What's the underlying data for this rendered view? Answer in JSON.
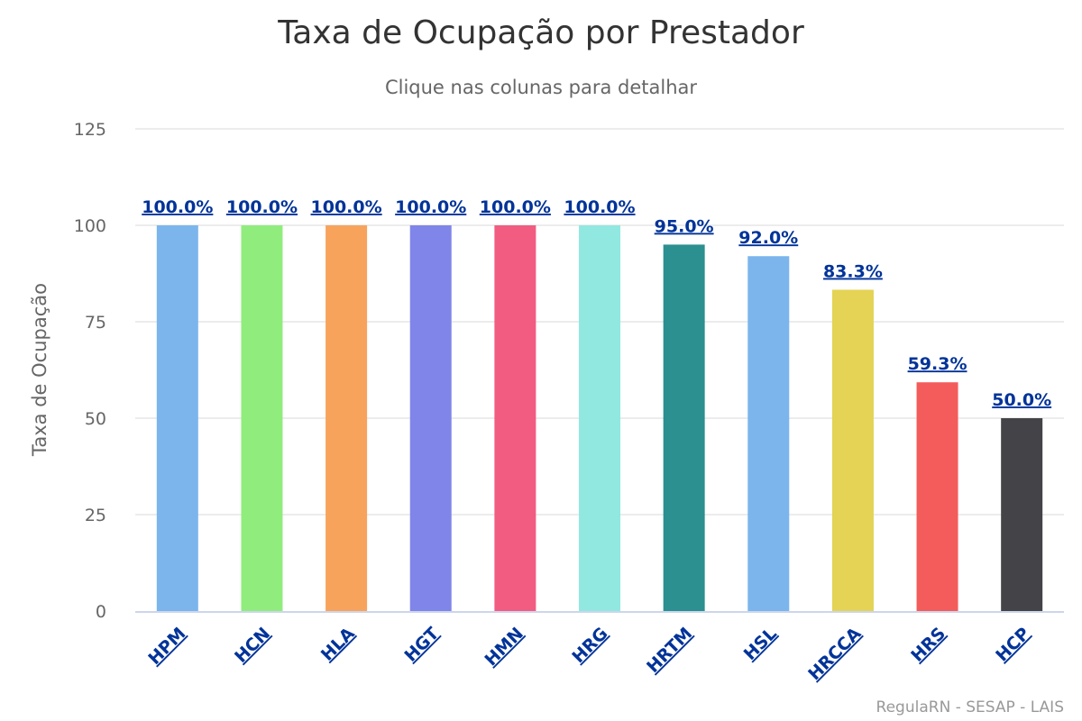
{
  "chart_data": {
    "type": "bar",
    "title": "Taxa de Ocupação por Prestador",
    "subtitle": "Clique nas colunas para detalhar",
    "xlabel": "",
    "ylabel": "Taxa de Ocupação",
    "ylim": [
      0,
      125
    ],
    "yticks": [
      0,
      25,
      50,
      75,
      100,
      125
    ],
    "ytick_labels": [
      "0",
      "25",
      "50",
      "75",
      "100",
      "125"
    ],
    "grid": true,
    "legend": "none",
    "categories": [
      "HPM",
      "HCN",
      "HLA",
      "HGT",
      "HMN",
      "HRG",
      "HRTM",
      "HSL",
      "HRCCA",
      "HRS",
      "HCP"
    ],
    "values": [
      100.0,
      100.0,
      100.0,
      100.0,
      100.0,
      100.0,
      95.0,
      92.0,
      83.3,
      59.3,
      50.0
    ],
    "data_labels": [
      "100.0%",
      "100.0%",
      "100.0%",
      "100.0%",
      "100.0%",
      "100.0%",
      "95.0%",
      "92.0%",
      "83.3%",
      "59.3%",
      "50.0%"
    ],
    "colors": [
      "#7cb5ec",
      "#90ed7d",
      "#f7a35c",
      "#8085e9",
      "#f15c80",
      "#91e8e1",
      "#2b908f",
      "#7cb5ec",
      "#e4d354",
      "#f45b5b",
      "#434348"
    ],
    "credits": "RegulaRN - SESAP - LAIS"
  }
}
